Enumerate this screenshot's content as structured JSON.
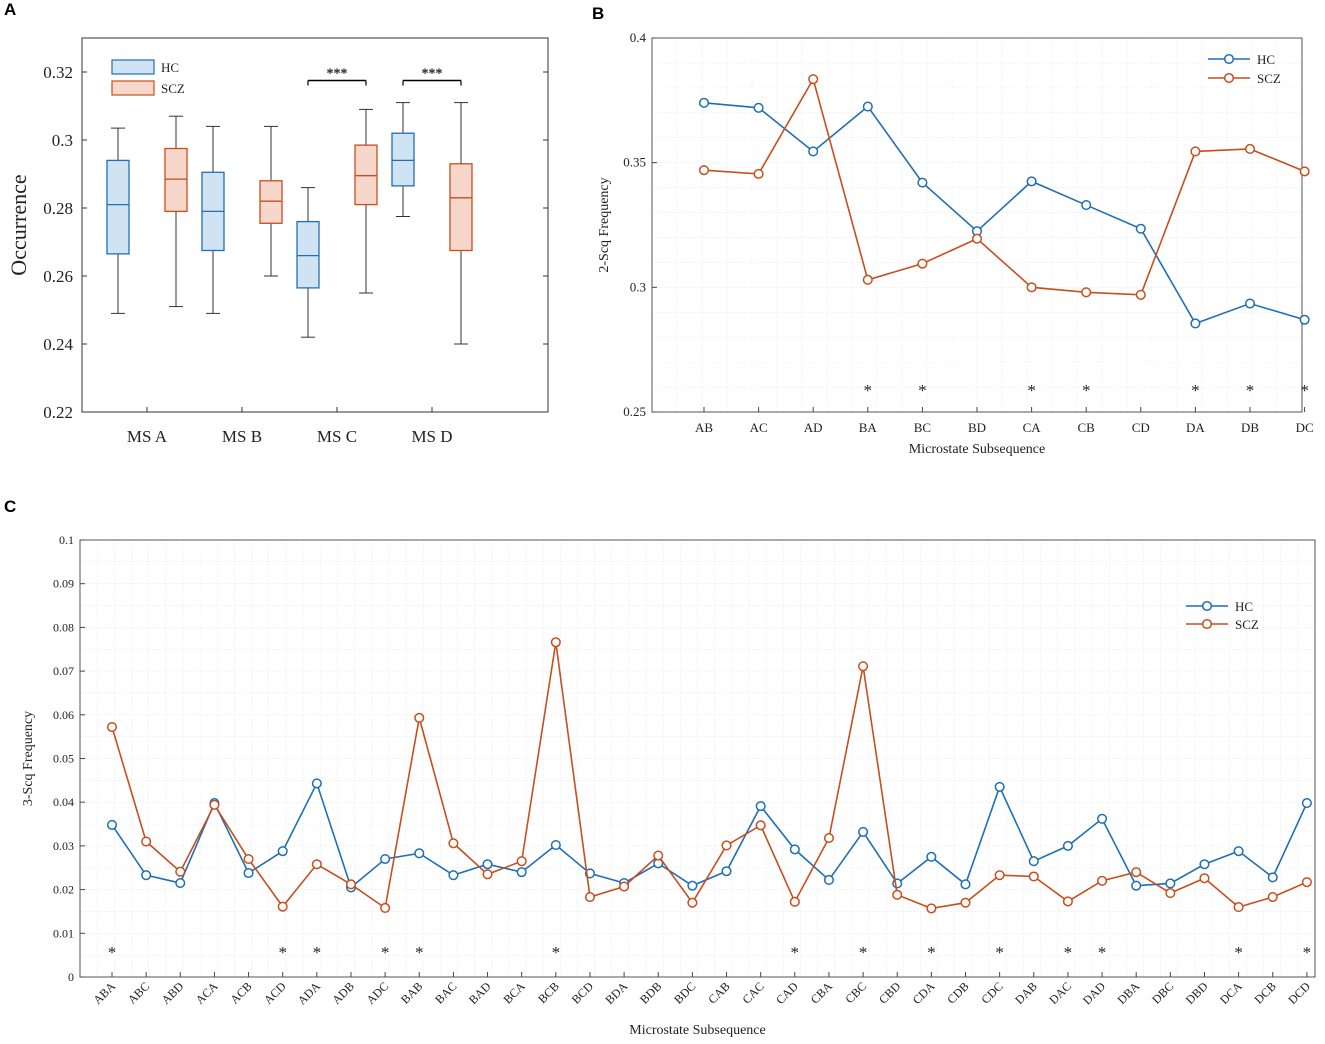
{
  "panel_labels": [
    "A",
    "B",
    "C"
  ],
  "colors": {
    "hc": "#1f6fb5",
    "scz": "#c84e1e",
    "hc_fill": "#cfe3f3",
    "scz_fill": "#f7d7c9"
  },
  "chart_data": [
    {
      "id": "A",
      "type": "box",
      "ylabel": "Occurrence",
      "xlabel": "",
      "ylim": [
        0.22,
        0.33
      ],
      "yticks": [
        0.22,
        0.24,
        0.26,
        0.28,
        0.3,
        0.32
      ],
      "ytick_labels": [
        "0.22",
        "0.24",
        "0.26",
        "0.28",
        "0.3",
        "0.32"
      ],
      "categories": [
        "MS A",
        "MS B",
        "MS C",
        "MS D"
      ],
      "legend": [
        "HC",
        "SCZ"
      ],
      "series": [
        {
          "name": "HC",
          "boxes": [
            {
              "min": 0.249,
              "q1": 0.2665,
              "median": 0.281,
              "q3": 0.294,
              "max": 0.3035
            },
            {
              "min": 0.249,
              "q1": 0.2675,
              "median": 0.279,
              "q3": 0.2905,
              "max": 0.304
            },
            {
              "min": 0.242,
              "q1": 0.2565,
              "median": 0.266,
              "q3": 0.276,
              "max": 0.286
            },
            {
              "min": 0.2775,
              "q1": 0.2865,
              "median": 0.294,
              "q3": 0.302,
              "max": 0.311
            }
          ]
        },
        {
          "name": "SCZ",
          "boxes": [
            {
              "min": 0.251,
              "q1": 0.279,
              "median": 0.2885,
              "q3": 0.2975,
              "max": 0.307
            },
            {
              "min": 0.26,
              "q1": 0.2755,
              "median": 0.282,
              "q3": 0.288,
              "max": 0.304
            },
            {
              "min": 0.255,
              "q1": 0.281,
              "median": 0.2895,
              "q3": 0.2985,
              "max": 0.309
            },
            {
              "min": 0.24,
              "q1": 0.2675,
              "median": 0.283,
              "q3": 0.293,
              "max": 0.311
            }
          ]
        }
      ],
      "significance": [
        {
          "category": "MS C",
          "label": "***",
          "y": 0.3175
        },
        {
          "category": "MS D",
          "label": "***",
          "y": 0.3175
        }
      ]
    },
    {
      "id": "B",
      "type": "line",
      "ylabel": "2-Scq Frequency",
      "xlabel": "Microstate Subsequence",
      "ylim": [
        0.25,
        0.4
      ],
      "yticks": [
        0.25,
        0.3,
        0.35,
        0.4
      ],
      "ytick_labels": [
        "0.25",
        "0.3",
        "0.35",
        "0.4"
      ],
      "categories": [
        "AB",
        "AC",
        "AD",
        "BA",
        "BC",
        "BD",
        "CA",
        "CB",
        "CD",
        "DA",
        "DB",
        "DC"
      ],
      "legend": [
        "HC",
        "SCZ"
      ],
      "series": [
        {
          "name": "HC",
          "values": [
            0.374,
            0.372,
            0.3545,
            0.3725,
            0.342,
            0.3225,
            0.3425,
            0.333,
            0.3235,
            0.2855,
            0.2935,
            0.287
          ]
        },
        {
          "name": "SCZ",
          "values": [
            0.347,
            0.3455,
            0.3835,
            0.303,
            0.3095,
            0.3195,
            0.3,
            0.298,
            0.297,
            0.3545,
            0.3555,
            0.3465
          ]
        }
      ],
      "significant": [
        "BA",
        "BC",
        "CA",
        "CB",
        "DA",
        "DB",
        "DC"
      ],
      "marker": "*"
    },
    {
      "id": "C",
      "type": "line",
      "ylabel": "3-Scq Frequency",
      "xlabel": "Microstate Subsequence",
      "ylim": [
        0,
        0.1
      ],
      "yticks": [
        0,
        0.01,
        0.02,
        0.03,
        0.04,
        0.05,
        0.06,
        0.07,
        0.08,
        0.09,
        0.1
      ],
      "ytick_labels": [
        "0",
        "0.01",
        "0.02",
        "0.03",
        "0.04",
        "0.05",
        "0.06",
        "0.07",
        "0.08",
        "0.09",
        "0.1"
      ],
      "categories": [
        "ABA",
        "ABC",
        "ABD",
        "ACA",
        "ACB",
        "ACD",
        "ADA",
        "ADB",
        "ADC",
        "BAB",
        "BAC",
        "BAD",
        "BCA",
        "BCB",
        "BCD",
        "BDA",
        "BDB",
        "BDC",
        "CAB",
        "CAC",
        "CAD",
        "CBA",
        "CBC",
        "CBD",
        "CDA",
        "CDB",
        "CDC",
        "DAB",
        "DAC",
        "DAD",
        "DBA",
        "DBC",
        "DBD",
        "DCA",
        "DCB",
        "DCD"
      ],
      "legend": [
        "HC",
        "SCZ"
      ],
      "series": [
        {
          "name": "HC",
          "values": [
            0.0348,
            0.0233,
            0.0215,
            0.0398,
            0.0238,
            0.0288,
            0.0443,
            0.0205,
            0.027,
            0.0283,
            0.0233,
            0.0258,
            0.024,
            0.0302,
            0.0237,
            0.0215,
            0.026,
            0.0209,
            0.0242,
            0.0391,
            0.0292,
            0.0222,
            0.0332,
            0.0214,
            0.0275,
            0.0212,
            0.0435,
            0.0265,
            0.03,
            0.0362,
            0.0209,
            0.0214,
            0.0258,
            0.0288,
            0.0228,
            0.0398
          ]
        },
        {
          "name": "SCZ",
          "values": [
            0.0572,
            0.031,
            0.0241,
            0.0394,
            0.027,
            0.0161,
            0.0258,
            0.0212,
            0.0158,
            0.0593,
            0.0306,
            0.0235,
            0.0265,
            0.0766,
            0.0183,
            0.0207,
            0.0278,
            0.017,
            0.0301,
            0.0347,
            0.0172,
            0.0318,
            0.0711,
            0.0188,
            0.0157,
            0.017,
            0.0233,
            0.023,
            0.0173,
            0.022,
            0.024,
            0.0192,
            0.0226,
            0.016,
            0.0183,
            0.0217
          ]
        }
      ],
      "significant": [
        "ABA",
        "ACD",
        "ADA",
        "ADC",
        "BAB",
        "BCB",
        "CAD",
        "CBC",
        "CDA",
        "CDC",
        "DAC",
        "DAD",
        "DCA",
        "DCD"
      ],
      "marker": "*"
    }
  ]
}
